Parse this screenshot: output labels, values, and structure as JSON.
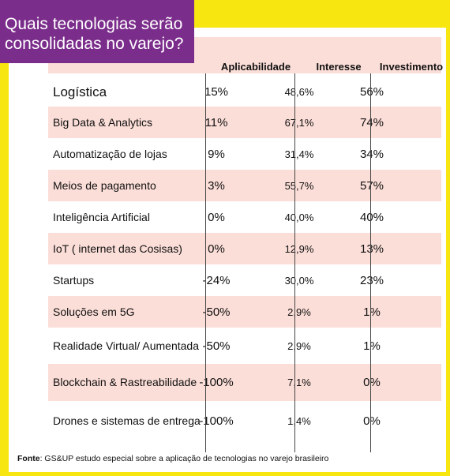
{
  "title": "Quais tecnologias serão consolidadas no varejo?",
  "chart_data": {
    "type": "table",
    "columns": [
      "",
      "Aplicabilidade",
      "Interesse",
      "Investimento"
    ],
    "rows": [
      {
        "name": "Logística",
        "aplicabilidade": "15%",
        "interesse": "48,6%",
        "investimento": "56%"
      },
      {
        "name": "Big Data & Analytics",
        "aplicabilidade": "11%",
        "interesse": "67,1%",
        "investimento": "74%"
      },
      {
        "name": "Automatização de lojas",
        "aplicabilidade": "9%",
        "interesse": "31,4%",
        "investimento": "34%"
      },
      {
        "name": "Meios de pagamento",
        "aplicabilidade": "3%",
        "interesse": "55,7%",
        "investimento": "57%"
      },
      {
        "name": "Inteligência Artificial",
        "aplicabilidade": "0%",
        "interesse": "40,0%",
        "investimento": "40%"
      },
      {
        "name": "IoT ( internet das Cosisas)",
        "aplicabilidade": "0%",
        "interesse": "12,9%",
        "investimento": "13%"
      },
      {
        "name": "Startups",
        "aplicabilidade": "-24%",
        "interesse": "30,0%",
        "investimento": "23%"
      },
      {
        "name": "Soluções em 5G",
        "aplicabilidade": "-50%",
        "interesse": "2,9%",
        "investimento": "1%"
      },
      {
        "name": "Realidade Virtual/ Aumentada",
        "aplicabilidade": "-50%",
        "interesse": "2,9%",
        "investimento": "1%"
      },
      {
        "name": "Blockchain & Rastreabilidade",
        "aplicabilidade": "-100%",
        "interesse": "7,1%",
        "investimento": "0%"
      },
      {
        "name": "Drones e sistemas de entrega",
        "aplicabilidade": "-100%",
        "interesse": "1,4%",
        "investimento": "0%"
      }
    ]
  },
  "footnote": {
    "label": "Fonte",
    "text": ": GS&UP estudo especial sobre a aplicação de tecnologias no varejo brasileiro"
  },
  "colors": {
    "background": "#f7e60f",
    "title_bg": "#7b2d8b",
    "stripe": "#fcded8"
  }
}
